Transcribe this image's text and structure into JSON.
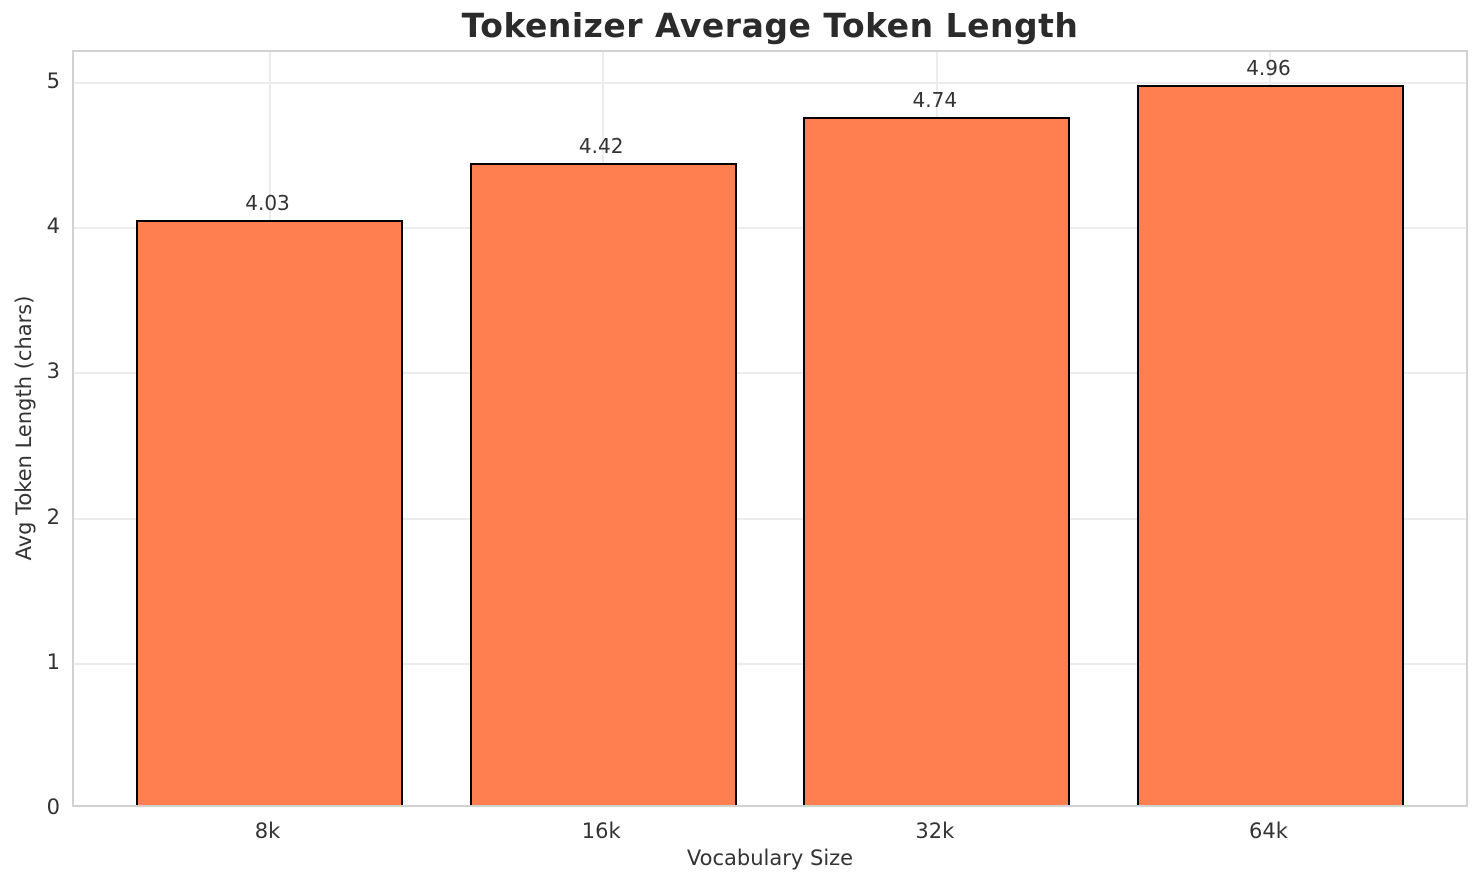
{
  "chart_data": {
    "type": "bar",
    "title": "Tokenizer Average Token Length",
    "categories": [
      "8k",
      "16k",
      "32k",
      "64k"
    ],
    "values": [
      4.03,
      4.42,
      4.74,
      4.96
    ],
    "value_labels": [
      "4.03",
      "4.42",
      "4.74",
      "4.96"
    ],
    "xlabel": "Vocabulary Size",
    "ylabel": "Avg Token Length (chars)",
    "yticks": [
      0,
      1,
      2,
      3,
      4,
      5
    ],
    "ytick_labels": [
      "0",
      "1",
      "2",
      "3",
      "4",
      "5"
    ],
    "ylim": [
      0,
      5.213
    ],
    "xlim": [
      -0.586,
      3.598
    ],
    "bar_width_ratio": 0.8,
    "legend": null,
    "grid": true,
    "colors": {
      "bar_fill": "#FF7F50",
      "bar_edge": "#000000",
      "grid_color": "#ececec",
      "spine_color": "#d2d2d2",
      "title_color": "#2b2b2b",
      "text_color": "#333333",
      "background": "#ffffff"
    }
  }
}
